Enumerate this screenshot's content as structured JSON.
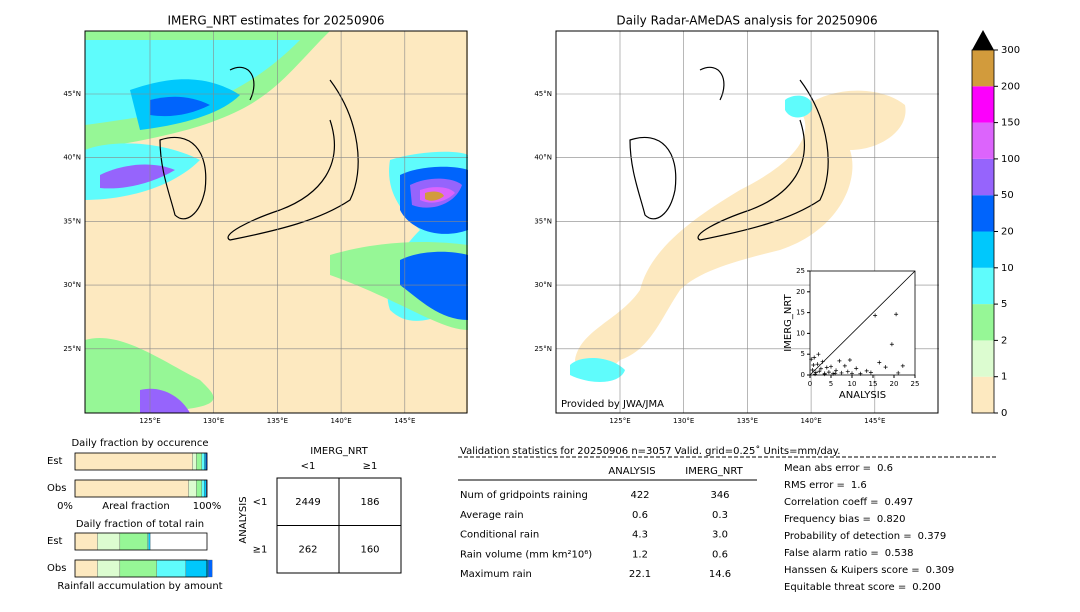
{
  "map_left": {
    "title": "IMERG_NRT estimates for 20250906",
    "lat_labels": [
      "45°N",
      "40°N",
      "35°N",
      "30°N",
      "25°N"
    ],
    "lon_labels": [
      "125°E",
      "130°E",
      "135°E",
      "140°E",
      "145°E"
    ]
  },
  "map_right": {
    "title": "Daily Radar-AMeDAS analysis for 20250906",
    "credit": "Provided by JWA/JMA",
    "lat_labels": [
      "45°N",
      "40°N",
      "35°N",
      "30°N",
      "25°N"
    ],
    "lon_labels": [
      "125°E",
      "130°E",
      "135°E",
      "140°E",
      "145°E"
    ]
  },
  "colorbar": {
    "ticks": [
      0,
      1,
      2,
      5,
      10,
      20,
      50,
      100,
      150,
      200,
      300
    ],
    "colors": [
      "#fde9c0",
      "#dcfcd0",
      "#96f796",
      "#5ffcfc",
      "#00c8fc",
      "#0064fc",
      "#9664fc",
      "#dc64fc",
      "#fc00fc",
      "#d29b3c"
    ]
  },
  "scatter": {
    "type": "scatter",
    "xlabel": "ANALYSIS",
    "ylabel": "IMERG_NRT",
    "xlim": [
      0,
      25
    ],
    "ylim": [
      0,
      25
    ],
    "xticks": [
      0,
      5,
      10,
      15,
      20,
      25
    ],
    "yticks": [
      0,
      5,
      10,
      15,
      20,
      25
    ],
    "x": [
      0.3,
      0.6,
      1.0,
      1.4,
      1.8,
      2.2,
      2.6,
      3.0,
      3.5,
      4.0,
      4.5,
      5.0,
      5.5,
      6.2,
      7.0,
      7.5,
      8.3,
      9.0,
      10.0,
      11.0,
      12.0,
      13.5,
      14.5,
      15.5,
      16.5,
      18.0,
      19.5,
      20.5,
      21.0,
      22.1,
      2.0,
      3.5,
      6.0,
      9.5,
      1.2,
      0.8
    ],
    "y": [
      3.8,
      1.2,
      4.2,
      0.6,
      2.6,
      0.9,
      1.5,
      3.2,
      0.4,
      1.8,
      0.7,
      2.0,
      0.3,
      1.1,
      3.4,
      0.5,
      2.2,
      0.8,
      0.4,
      1.6,
      0.3,
      1.0,
      0.6,
      14.3,
      3.0,
      1.9,
      7.4,
      14.6,
      0.5,
      2.2,
      5.0,
      0.2,
      0.4,
      3.6,
      0.2,
      2.4
    ]
  },
  "fraction_occurrence": {
    "title": "Daily fraction by occurence",
    "rows": [
      "Est",
      "Obs"
    ],
    "left": "0%",
    "middle": "Areal fraction",
    "right": "100%",
    "segments": [
      [
        0.89,
        0.03,
        0.04,
        0.02,
        0.01,
        0.01
      ],
      [
        0.86,
        0.06,
        0.04,
        0.02,
        0.015,
        0.005
      ]
    ]
  },
  "fraction_total": {
    "title": "Daily fraction of total rain",
    "rows": [
      "Est",
      "Obs"
    ],
    "xlabel": "Rainfall accumulation by amount",
    "segments": [
      [
        0.17,
        0.17,
        0.21,
        0.01,
        0.01,
        0.0
      ],
      [
        0.17,
        0.17,
        0.28,
        0.22,
        0.17,
        0.03
      ]
    ]
  },
  "contingency": {
    "title": "IMERG_NRT",
    "col_labels": [
      "<1",
      "≥1"
    ],
    "row_title": "ANALYSIS",
    "row_labels": [
      "<1",
      "≥1"
    ],
    "cells": [
      [
        2449,
        186
      ],
      [
        262,
        160
      ]
    ]
  },
  "stats": {
    "header": "Validation statistics for 20250906  n=3057 Valid. grid=0.25˚ Units=mm/day.",
    "col_labels": [
      "ANALYSIS",
      "IMERG_NRT"
    ],
    "rows": [
      {
        "label": "Num of gridpoints raining",
        "values": [
          422,
          346
        ]
      },
      {
        "label": "Average rain",
        "values": [
          0.6,
          0.3
        ]
      },
      {
        "label": "Conditional rain",
        "values": [
          4.3,
          "3.0"
        ]
      },
      {
        "label": "Rain volume (mm km²10⁶)",
        "values": [
          1.2,
          0.6
        ]
      },
      {
        "label": "Maximum rain",
        "values": [
          22.1,
          14.6
        ]
      }
    ],
    "scores": [
      {
        "label": "Mean abs error =",
        "value": 0.6
      },
      {
        "label": "RMS error =",
        "value": 1.6
      },
      {
        "label": "Correlation coeff =",
        "value": 0.497
      },
      {
        "label": "Frequency bias =",
        "value": "0.820"
      },
      {
        "label": "Probability of detection =",
        "value": 0.379
      },
      {
        "label": "False alarm ratio =",
        "value": 0.538
      },
      {
        "label": "Hanssen & Kuipers score =",
        "value": 0.309
      },
      {
        "label": "Equitable threat score =",
        "value": "0.200"
      }
    ]
  }
}
